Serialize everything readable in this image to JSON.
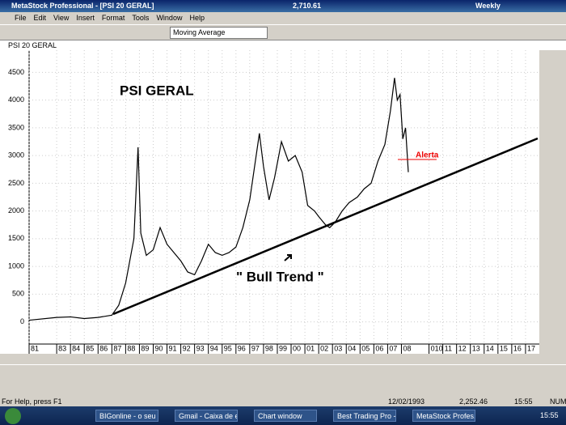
{
  "window": {
    "title": "MetaStock Professional - [PSI 20 GERAL]",
    "last_value": "2,710.61",
    "periodicity": "Weekly"
  },
  "menu": [
    "File",
    "Edit",
    "View",
    "Insert",
    "Format",
    "Tools",
    "Window",
    "Help"
  ],
  "toolbar": {
    "indicator": "Moving Average"
  },
  "chart_window": {
    "tab": "PSI 20 GERAL"
  },
  "status": {
    "help": "For Help, press F1",
    "date": "12/02/1993",
    "value": "2,252.46",
    "time": "15:55",
    "mode": "NUM"
  },
  "taskbar": {
    "items": [
      "BIGonline - o seu ...",
      "Gmail - Caixa de e...",
      "Chart window",
      "Best Trading Pro -...",
      "MetaStock Profes..."
    ],
    "clock": "15:55"
  },
  "chart_data": {
    "type": "line",
    "color": "#000000",
    "grid": true,
    "annotations": [
      "PSI GERAL",
      "\" Bull Trend \"",
      "Alerta"
    ],
    "x": [
      1981,
      1983,
      1984,
      1985,
      1986,
      1987,
      1987.5,
      1988,
      1988.6,
      1988.9,
      1989.1,
      1989.5,
      1990,
      1990.5,
      1991,
      1991.5,
      1992,
      1992.5,
      1993,
      1993.5,
      1994,
      1994.5,
      1995,
      1995.5,
      1996,
      1996.5,
      1997,
      1997.7,
      1998,
      1998.4,
      1998.8,
      1999.3,
      1999.8,
      2000.3,
      2000.8,
      2001.2,
      2001.7,
      2002,
      2002.5,
      2002.8,
      2003.2,
      2003.7,
      2004.2,
      2004.8,
      2005.3,
      2005.8,
      2006.3,
      2006.8,
      2007.2,
      2007.5,
      2007.7,
      2007.9,
      2008.1,
      2008.3,
      2008.5
    ],
    "values": [
      30,
      80,
      90,
      60,
      80,
      120,
      300,
      700,
      1500,
      3150,
      1600,
      1200,
      1300,
      1700,
      1400,
      1250,
      1100,
      900,
      850,
      1100,
      1400,
      1250,
      1200,
      1250,
      1350,
      1700,
      2200,
      3400,
      2800,
      2200,
      2600,
      3250,
      2900,
      3000,
      2700,
      2100,
      2000,
      1900,
      1750,
      1700,
      1800,
      2000,
      2150,
      2250,
      2400,
      2500,
      2900,
      3200,
      3800,
      4400,
      4000,
      4100,
      3300,
      3500,
      2700
    ],
    "xlim": [
      1981,
      2018
    ],
    "ylim": [
      -400,
      4900
    ],
    "yticks": [
      0,
      500,
      1000,
      1500,
      2000,
      2500,
      3000,
      3500,
      4000,
      4500
    ],
    "xticks": [
      {
        "value": 1981,
        "label": "81"
      },
      {
        "value": 1983,
        "label": "83"
      },
      {
        "value": 1984,
        "label": "84"
      },
      {
        "value": 1985,
        "label": "85"
      },
      {
        "value": 1986,
        "label": "86"
      },
      {
        "value": 1987,
        "label": "87"
      },
      {
        "value": 1988,
        "label": "88"
      },
      {
        "value": 1989,
        "label": "89"
      },
      {
        "value": 1990,
        "label": "90"
      },
      {
        "value": 1991,
        "label": "91"
      },
      {
        "value": 1992,
        "label": "92"
      },
      {
        "value": 1993,
        "label": "93"
      },
      {
        "value": 1994,
        "label": "94"
      },
      {
        "value": 1995,
        "label": "95"
      },
      {
        "value": 1996,
        "label": "96"
      },
      {
        "value": 1997,
        "label": "97"
      },
      {
        "value": 1998,
        "label": "98"
      },
      {
        "value": 1999,
        "label": "99"
      },
      {
        "value": 2000,
        "label": "00"
      },
      {
        "value": 2001,
        "label": "01"
      },
      {
        "value": 2002,
        "label": "02"
      },
      {
        "value": 2003,
        "label": "03"
      },
      {
        "value": 2004,
        "label": "04"
      },
      {
        "value": 2005,
        "label": "05"
      },
      {
        "value": 2006,
        "label": "06"
      },
      {
        "value": 2007,
        "label": "07"
      },
      {
        "value": 2008,
        "label": "08"
      },
      {
        "value": 2010,
        "label": "010"
      },
      {
        "value": 2011,
        "label": "11"
      },
      {
        "value": 2012,
        "label": "12"
      },
      {
        "value": 2013,
        "label": "13"
      },
      {
        "value": 2014,
        "label": "14"
      },
      {
        "value": 2015,
        "label": "15"
      },
      {
        "value": 2016,
        "label": "16"
      },
      {
        "value": 2017,
        "label": "17"
      }
    ]
  }
}
